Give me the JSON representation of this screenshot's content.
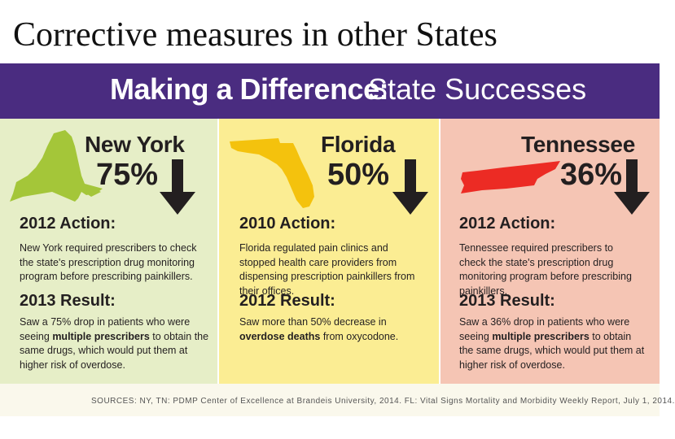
{
  "slide": {
    "title": "Corrective measures in other States"
  },
  "banner": {
    "bold": "Making a Difference:",
    "light": "State Successes"
  },
  "states": [
    {
      "name": "New York",
      "percent": "75%",
      "action_heading": "2012 Action:",
      "action_text": "New York required prescribers to check the state's prescription drug monitoring program before prescribing painkillers.",
      "result_heading": "2013 Result:",
      "result_pre": "Saw a 75% drop in patients who were seeing ",
      "result_bold": "multiple prescribers",
      "result_post": " to obtain the same drugs, which would put them at higher risk of overdose.",
      "color": "#a4c639"
    },
    {
      "name": "Florida",
      "percent": "50%",
      "action_heading": "2010 Action:",
      "action_text": "Florida regulated pain clinics and stopped health care providers from dispensing prescription painkillers from their offices.",
      "result_heading": "2012 Result:",
      "result_pre": "Saw more than 50% decrease in ",
      "result_bold": "overdose deaths",
      "result_post": " from oxycodone.",
      "color": "#f4c20d"
    },
    {
      "name": "Tennessee",
      "percent": "36%",
      "action_heading": "2012 Action:",
      "action_text": "Tennessee required prescribers to check the state's prescription drug monitoring program before prescribing painkillers.",
      "result_heading": "2013 Result:",
      "result_pre": "Saw a 36% drop in patients who were seeing ",
      "result_bold": "multiple prescribers",
      "result_post": " to obtain the same drugs, which would put them at higher risk of overdose.",
      "color": "#ec2b24"
    }
  ],
  "sources": "SOURCES: NY, TN: PDMP Center of Excellence at Brandeis University, 2014. FL: Vital Signs Mortality and Morbidity Weekly Report, July 1, 2014.",
  "icons": {
    "trend": "down-arrow-icon"
  },
  "colors": {
    "banner": "#4a2c80",
    "ny_panel": "#e6eec7",
    "fl_panel": "#fbed93",
    "tn_panel": "#f5c5b4"
  }
}
